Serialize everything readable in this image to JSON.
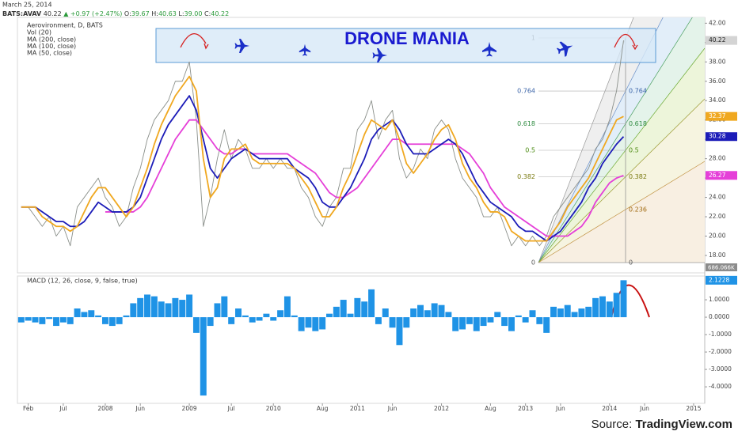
{
  "header": {
    "date": "March 25, 2014",
    "symbol": "BATS:AVAV",
    "last": "40.22",
    "change": "▲ +0.97 (+2.47%)",
    "ohlc": [
      {
        "label": "O:",
        "value": "39.67"
      },
      {
        "label": "H:",
        "value": "40.63"
      },
      {
        "label": "L:",
        "value": "39.00"
      },
      {
        "label": "C:",
        "value": "40.22"
      }
    ]
  },
  "banner": "DRONE MANIA",
  "fibonacci": {
    "left": [
      1,
      0.764,
      0.618,
      0.5,
      0.382,
      0
    ],
    "right": [
      0.764,
      0.618,
      0.5,
      0.382,
      0.236,
      0
    ]
  },
  "footer": {
    "label": "Source:",
    "name": "TradingView.com"
  },
  "chart_data": {
    "type": "line",
    "categories": [
      null,
      "Feb",
      null,
      null,
      null,
      null,
      "Jul",
      null,
      null,
      null,
      null,
      null,
      "2008",
      null,
      null,
      null,
      null,
      "Jun",
      null,
      null,
      null,
      null,
      null,
      null,
      "2009",
      null,
      null,
      null,
      null,
      null,
      "Jul",
      null,
      null,
      null,
      null,
      null,
      "2010",
      null,
      null,
      null,
      null,
      null,
      null,
      "Aug",
      null,
      null,
      null,
      null,
      "2011",
      null,
      null,
      null,
      null,
      "Jun",
      null,
      null,
      null,
      null,
      null,
      null,
      "2012",
      null,
      null,
      null,
      null,
      null,
      null,
      "Aug",
      null,
      null,
      null,
      null,
      "2013",
      null,
      null,
      null,
      null,
      "Jun",
      null,
      null,
      null,
      null,
      null,
      null,
      "2014",
      null,
      null,
      null,
      null,
      "Jun",
      null,
      null,
      null,
      null,
      null,
      null,
      "2015",
      null
    ],
    "ylim": [
      16.2,
      42.6
    ],
    "yticks": [
      {
        "value": 18,
        "label": "18.00"
      },
      {
        "value": 20,
        "label": "20.00"
      },
      {
        "value": 22,
        "label": "22.00"
      },
      {
        "value": 24,
        "label": "24.00"
      },
      {
        "value": 26,
        "label": "26.00"
      },
      {
        "value": 28,
        "label": "28.00"
      },
      {
        "value": 30,
        "label": "30.00"
      },
      {
        "value": 32,
        "label": "32.00"
      },
      {
        "value": 34,
        "label": "34.00"
      },
      {
        "value": 36,
        "label": "36.00"
      },
      {
        "value": 38,
        "label": "38.00"
      },
      {
        "value": 40,
        "label": "40.00"
      },
      {
        "value": 42,
        "label": "42.00"
      }
    ],
    "volume_name": "Vol (20)",
    "volume_last": "686.066K",
    "series": [
      {
        "name": "Aerovironment, D, BATS",
        "color": "#8a8f8a",
        "values": [
          23,
          23,
          22,
          21,
          22,
          20,
          21,
          19,
          23,
          24,
          25,
          26,
          24,
          23,
          21,
          22,
          25,
          27,
          30,
          32,
          33,
          34,
          36,
          36,
          38,
          32,
          21,
          24,
          28,
          31,
          28,
          30,
          29,
          27,
          27,
          28,
          27,
          28,
          27,
          27,
          25,
          24,
          22,
          21,
          23,
          24,
          27,
          27,
          31,
          32,
          34,
          30,
          32,
          33,
          28,
          26,
          27,
          29,
          28,
          31,
          32,
          31,
          28,
          26,
          25,
          24,
          22,
          22,
          23,
          21,
          19,
          20,
          19,
          20,
          19,
          20,
          22,
          23,
          24,
          25,
          26,
          27,
          29,
          30,
          32,
          35,
          40.22,
          null,
          null,
          null,
          null,
          null,
          null,
          null,
          null,
          null,
          null,
          null
        ]
      },
      {
        "name": "MA (200, close)",
        "color": "#e53fd8",
        "values": [
          null,
          null,
          null,
          null,
          null,
          null,
          null,
          null,
          null,
          null,
          null,
          null,
          22.5,
          22.5,
          22.5,
          22.5,
          22.5,
          23,
          24,
          25.5,
          27,
          28.5,
          30,
          31,
          32,
          32,
          31,
          30,
          29,
          28.5,
          28.5,
          29,
          29,
          28.5,
          28.5,
          28.5,
          28.5,
          28.5,
          28.5,
          28,
          27.5,
          27,
          26.5,
          25.5,
          24.5,
          24,
          24,
          24.5,
          25,
          26,
          27,
          28,
          29,
          30,
          30,
          29.5,
          29.5,
          29.5,
          29.5,
          29.5,
          29.5,
          29.5,
          29.5,
          29,
          28.5,
          27.5,
          26.5,
          25,
          24,
          23,
          22.5,
          22,
          21.5,
          21,
          20.5,
          20,
          20,
          20,
          20,
          20.5,
          21,
          22,
          23.5,
          24.5,
          25.5,
          26,
          26.27,
          null,
          null,
          null,
          null,
          null,
          null,
          null,
          null,
          null,
          null,
          null
        ]
      },
      {
        "name": "MA (100, close)",
        "color": "#1c1cb8",
        "values": [
          23,
          23,
          23,
          22.5,
          22,
          21.5,
          21.5,
          21,
          21,
          21.5,
          22.5,
          23.5,
          23,
          22.5,
          22.5,
          22.5,
          23,
          24,
          26,
          28,
          30,
          31.5,
          32.5,
          33.5,
          34.5,
          33,
          30,
          27,
          26,
          27,
          28,
          28.5,
          29,
          28.5,
          28,
          28,
          28,
          28,
          28,
          27,
          26.5,
          26,
          25,
          23.5,
          23,
          23,
          24,
          25,
          26.5,
          28,
          30,
          31,
          31.5,
          32,
          31,
          29.5,
          28.5,
          28.5,
          28.5,
          29,
          29.5,
          30,
          29.5,
          28.5,
          27,
          25.5,
          24.5,
          23.5,
          23,
          22.5,
          22,
          21,
          20.5,
          20.5,
          20,
          19.5,
          20,
          20.5,
          21.5,
          22.5,
          23.5,
          25,
          26,
          27.5,
          28.5,
          29.5,
          30.28,
          null,
          null,
          null,
          null,
          null,
          null,
          null,
          null,
          null,
          null,
          null
        ]
      },
      {
        "name": "MA (50, close)",
        "color": "#f0a820",
        "values": [
          23,
          23,
          23,
          22,
          21.5,
          21,
          21,
          20.5,
          21,
          22.5,
          24,
          25,
          25,
          24,
          23,
          22,
          23,
          25,
          27,
          29.5,
          31.5,
          33,
          34.5,
          35.5,
          36.5,
          35,
          28,
          24,
          25,
          28,
          29,
          29,
          29.5,
          28,
          27.5,
          27.5,
          27.5,
          27.5,
          27.5,
          27,
          26,
          25,
          23.5,
          22,
          22,
          23,
          25,
          26.5,
          28.5,
          30.5,
          32,
          31.5,
          31,
          32,
          30,
          27.5,
          26.5,
          27.5,
          28.5,
          30,
          31,
          31.5,
          30,
          27.5,
          26,
          25,
          23.5,
          22.5,
          22.5,
          22,
          20.5,
          20,
          19.5,
          19.5,
          19.5,
          19.5,
          20.5,
          21.5,
          23,
          24,
          25,
          26,
          27.5,
          29,
          30.5,
          32,
          32.37,
          null,
          null,
          null,
          null,
          null,
          null,
          null,
          null,
          null,
          null,
          null
        ]
      }
    ],
    "macd": {
      "title": "MACD (12, 26, close, 9, false, true)",
      "color": "#1f93e6",
      "ylim": [
        -4.95,
        2.32
      ],
      "yticks": [
        {
          "value": 1,
          "label": "1.0000"
        },
        {
          "value": 0,
          "label": "0.0000"
        },
        {
          "value": -1,
          "label": "-1.0000"
        },
        {
          "value": -2,
          "label": "-2.0000"
        },
        {
          "value": -3,
          "label": "-3.0000"
        },
        {
          "value": -4,
          "label": "-4.0000"
        }
      ],
      "values": [
        -0.3,
        -0.2,
        -0.3,
        -0.4,
        -0.1,
        -0.5,
        -0.3,
        -0.4,
        0.5,
        0.3,
        0.4,
        0.1,
        -0.4,
        -0.5,
        -0.4,
        0.1,
        0.8,
        1.1,
        1.3,
        1.2,
        0.9,
        0.8,
        1.1,
        1.0,
        1.3,
        -0.9,
        -4.5,
        -0.5,
        0.8,
        1.2,
        -0.4,
        0.5,
        0.1,
        -0.3,
        -0.2,
        0.2,
        -0.2,
        0.4,
        1.2,
        0.1,
        -0.8,
        -0.6,
        -0.8,
        -0.7,
        0.2,
        0.6,
        1.0,
        0.2,
        1.1,
        0.9,
        1.6,
        -0.4,
        0.5,
        -0.6,
        -1.6,
        -0.6,
        0.5,
        0.7,
        0.4,
        0.8,
        0.7,
        0.3,
        -0.8,
        -0.7,
        -0.4,
        -0.8,
        -0.5,
        -0.3,
        0.3,
        -0.5,
        -0.8,
        0.1,
        -0.3,
        0.4,
        -0.4,
        -0.9,
        0.6,
        0.5,
        0.7,
        0.3,
        0.5,
        0.6,
        1.1,
        1.2,
        0.9,
        1.4,
        2.1228,
        null,
        null,
        null,
        null,
        null,
        null,
        null,
        null,
        null,
        null,
        null
      ]
    }
  }
}
